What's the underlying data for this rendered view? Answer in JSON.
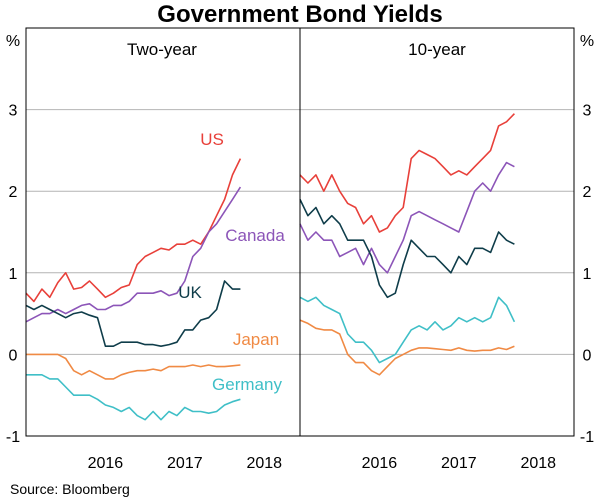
{
  "chart_data": {
    "type": "line",
    "title": "Government Bond Yields",
    "source": "Source:   Bloomberg",
    "y_unit": "%",
    "ylim": [
      -1,
      4
    ],
    "yticks": [
      "-1",
      "0",
      "1",
      "2",
      "3"
    ],
    "xlim": [
      2015.5,
      2018.95
    ],
    "x_ticks": [
      "2016",
      "2017",
      "2018"
    ],
    "colors": {
      "US": "#e8403a",
      "Canada": "#8c55b8",
      "UK": "#0f3d4a",
      "Japan": "#f08a44",
      "Germany": "#3fbfc7",
      "grid": "#b4b4b4"
    },
    "panels": [
      {
        "title": "Two-year",
        "series": [
          {
            "name": "US",
            "label": "US",
            "x": [
              2015.5,
              2015.6,
              2015.7,
              2015.8,
              2015.9,
              2016.0,
              2016.1,
              2016.2,
              2016.3,
              2016.4,
              2016.5,
              2016.6,
              2016.7,
              2016.8,
              2016.9,
              2017.0,
              2017.1,
              2017.2,
              2017.3,
              2017.4,
              2017.5,
              2017.6,
              2017.7,
              2017.8,
              2017.9,
              2018.0,
              2018.1,
              2018.2
            ],
            "values": [
              0.75,
              0.65,
              0.8,
              0.7,
              0.88,
              1.0,
              0.8,
              0.82,
              0.9,
              0.8,
              0.7,
              0.75,
              0.82,
              0.85,
              1.1,
              1.2,
              1.25,
              1.3,
              1.28,
              1.35,
              1.35,
              1.4,
              1.35,
              1.5,
              1.7,
              1.9,
              2.2,
              2.4
            ]
          },
          {
            "name": "Canada",
            "label": "Canada",
            "x": [
              2015.5,
              2015.6,
              2015.7,
              2015.8,
              2015.9,
              2016.0,
              2016.1,
              2016.2,
              2016.3,
              2016.4,
              2016.5,
              2016.6,
              2016.7,
              2016.8,
              2016.9,
              2017.0,
              2017.1,
              2017.2,
              2017.3,
              2017.4,
              2017.5,
              2017.6,
              2017.7,
              2017.8,
              2017.9,
              2018.0,
              2018.1,
              2018.2
            ],
            "values": [
              0.4,
              0.45,
              0.5,
              0.5,
              0.55,
              0.5,
              0.55,
              0.6,
              0.62,
              0.55,
              0.55,
              0.6,
              0.6,
              0.65,
              0.75,
              0.75,
              0.75,
              0.78,
              0.72,
              0.75,
              0.9,
              1.2,
              1.3,
              1.5,
              1.6,
              1.75,
              1.9,
              2.05
            ]
          },
          {
            "name": "UK",
            "label": "UK",
            "x": [
              2015.5,
              2015.6,
              2015.7,
              2015.8,
              2015.9,
              2016.0,
              2016.1,
              2016.2,
              2016.3,
              2016.4,
              2016.5,
              2016.6,
              2016.7,
              2016.8,
              2016.9,
              2017.0,
              2017.1,
              2017.2,
              2017.3,
              2017.4,
              2017.5,
              2017.6,
              2017.7,
              2017.8,
              2017.9,
              2018.0,
              2018.1,
              2018.2
            ],
            "values": [
              0.6,
              0.55,
              0.6,
              0.55,
              0.5,
              0.45,
              0.5,
              0.52,
              0.48,
              0.45,
              0.1,
              0.1,
              0.15,
              0.15,
              0.15,
              0.12,
              0.12,
              0.1,
              0.12,
              0.15,
              0.3,
              0.3,
              0.42,
              0.45,
              0.55,
              0.9,
              0.8,
              0.8
            ]
          },
          {
            "name": "Japan",
            "label": "Japan",
            "x": [
              2015.5,
              2015.6,
              2015.7,
              2015.8,
              2015.9,
              2016.0,
              2016.1,
              2016.2,
              2016.3,
              2016.4,
              2016.5,
              2016.6,
              2016.7,
              2016.8,
              2016.9,
              2017.0,
              2017.1,
              2017.2,
              2017.3,
              2017.4,
              2017.5,
              2017.6,
              2017.7,
              2017.8,
              2017.9,
              2018.0,
              2018.1,
              2018.2
            ],
            "values": [
              0.0,
              0.0,
              0.0,
              0.0,
              0.0,
              -0.05,
              -0.2,
              -0.25,
              -0.2,
              -0.25,
              -0.3,
              -0.3,
              -0.25,
              -0.22,
              -0.2,
              -0.2,
              -0.18,
              -0.2,
              -0.15,
              -0.15,
              -0.15,
              -0.13,
              -0.15,
              -0.13,
              -0.15,
              -0.15,
              -0.14,
              -0.13
            ]
          },
          {
            "name": "Germany",
            "label": "Germany",
            "x": [
              2015.5,
              2015.6,
              2015.7,
              2015.8,
              2015.9,
              2016.0,
              2016.1,
              2016.2,
              2016.3,
              2016.4,
              2016.5,
              2016.6,
              2016.7,
              2016.8,
              2016.9,
              2017.0,
              2017.1,
              2017.2,
              2017.3,
              2017.4,
              2017.5,
              2017.6,
              2017.7,
              2017.8,
              2017.9,
              2018.0,
              2018.1,
              2018.2
            ],
            "values": [
              -0.25,
              -0.25,
              -0.25,
              -0.3,
              -0.3,
              -0.4,
              -0.5,
              -0.5,
              -0.5,
              -0.55,
              -0.62,
              -0.65,
              -0.7,
              -0.65,
              -0.75,
              -0.8,
              -0.7,
              -0.8,
              -0.7,
              -0.75,
              -0.65,
              -0.7,
              -0.7,
              -0.72,
              -0.7,
              -0.62,
              -0.58,
              -0.55
            ]
          }
        ]
      },
      {
        "title": "10-year",
        "series": [
          {
            "name": "US",
            "x": [
              2015.5,
              2015.6,
              2015.7,
              2015.8,
              2015.9,
              2016.0,
              2016.1,
              2016.2,
              2016.3,
              2016.4,
              2016.5,
              2016.6,
              2016.7,
              2016.8,
              2016.9,
              2017.0,
              2017.1,
              2017.2,
              2017.3,
              2017.4,
              2017.5,
              2017.6,
              2017.7,
              2017.8,
              2017.9,
              2018.0,
              2018.1,
              2018.2
            ],
            "values": [
              2.2,
              2.1,
              2.2,
              2.0,
              2.2,
              2.0,
              1.85,
              1.8,
              1.6,
              1.7,
              1.5,
              1.55,
              1.7,
              1.8,
              2.4,
              2.5,
              2.45,
              2.4,
              2.3,
              2.2,
              2.25,
              2.2,
              2.3,
              2.4,
              2.5,
              2.8,
              2.85,
              2.95
            ]
          },
          {
            "name": "Canada",
            "x": [
              2015.5,
              2015.6,
              2015.7,
              2015.8,
              2015.9,
              2016.0,
              2016.1,
              2016.2,
              2016.3,
              2016.4,
              2016.5,
              2016.6,
              2016.7,
              2016.8,
              2016.9,
              2017.0,
              2017.1,
              2017.2,
              2017.3,
              2017.4,
              2017.5,
              2017.6,
              2017.7,
              2017.8,
              2017.9,
              2018.0,
              2018.1,
              2018.2
            ],
            "values": [
              1.6,
              1.4,
              1.5,
              1.4,
              1.4,
              1.2,
              1.25,
              1.3,
              1.1,
              1.3,
              1.1,
              1.0,
              1.2,
              1.4,
              1.7,
              1.75,
              1.7,
              1.65,
              1.6,
              1.55,
              1.5,
              1.75,
              2.0,
              2.1,
              2.0,
              2.2,
              2.35,
              2.3
            ]
          },
          {
            "name": "UK",
            "x": [
              2015.5,
              2015.6,
              2015.7,
              2015.8,
              2015.9,
              2016.0,
              2016.1,
              2016.2,
              2016.3,
              2016.4,
              2016.5,
              2016.6,
              2016.7,
              2016.8,
              2016.9,
              2017.0,
              2017.1,
              2017.2,
              2017.3,
              2017.4,
              2017.5,
              2017.6,
              2017.7,
              2017.8,
              2017.9,
              2018.0,
              2018.1,
              2018.2
            ],
            "values": [
              1.9,
              1.7,
              1.8,
              1.6,
              1.7,
              1.6,
              1.4,
              1.4,
              1.4,
              1.2,
              0.85,
              0.7,
              0.75,
              1.1,
              1.4,
              1.3,
              1.2,
              1.2,
              1.1,
              1.0,
              1.2,
              1.1,
              1.3,
              1.3,
              1.25,
              1.5,
              1.4,
              1.35
            ]
          },
          {
            "name": "Japan",
            "x": [
              2015.5,
              2015.6,
              2015.7,
              2015.8,
              2015.9,
              2016.0,
              2016.1,
              2016.2,
              2016.3,
              2016.4,
              2016.5,
              2016.6,
              2016.7,
              2016.8,
              2016.9,
              2017.0,
              2017.1,
              2017.2,
              2017.3,
              2017.4,
              2017.5,
              2017.6,
              2017.7,
              2017.8,
              2017.9,
              2018.0,
              2018.1,
              2018.2
            ],
            "values": [
              0.42,
              0.38,
              0.32,
              0.3,
              0.3,
              0.25,
              0.0,
              -0.1,
              -0.1,
              -0.2,
              -0.25,
              -0.15,
              -0.05,
              0.0,
              0.05,
              0.08,
              0.08,
              0.07,
              0.06,
              0.05,
              0.08,
              0.05,
              0.04,
              0.05,
              0.05,
              0.08,
              0.06,
              0.1
            ]
          },
          {
            "name": "Germany",
            "x": [
              2015.5,
              2015.6,
              2015.7,
              2015.8,
              2015.9,
              2016.0,
              2016.1,
              2016.2,
              2016.3,
              2016.4,
              2016.5,
              2016.6,
              2016.7,
              2016.8,
              2016.9,
              2017.0,
              2017.1,
              2017.2,
              2017.3,
              2017.4,
              2017.5,
              2017.6,
              2017.7,
              2017.8,
              2017.9,
              2018.0,
              2018.1,
              2018.2
            ],
            "values": [
              0.7,
              0.65,
              0.7,
              0.6,
              0.55,
              0.5,
              0.25,
              0.15,
              0.15,
              0.05,
              -0.1,
              -0.05,
              0.0,
              0.15,
              0.3,
              0.35,
              0.3,
              0.4,
              0.3,
              0.35,
              0.45,
              0.4,
              0.45,
              0.4,
              0.45,
              0.7,
              0.6,
              0.4
            ]
          }
        ]
      }
    ]
  }
}
